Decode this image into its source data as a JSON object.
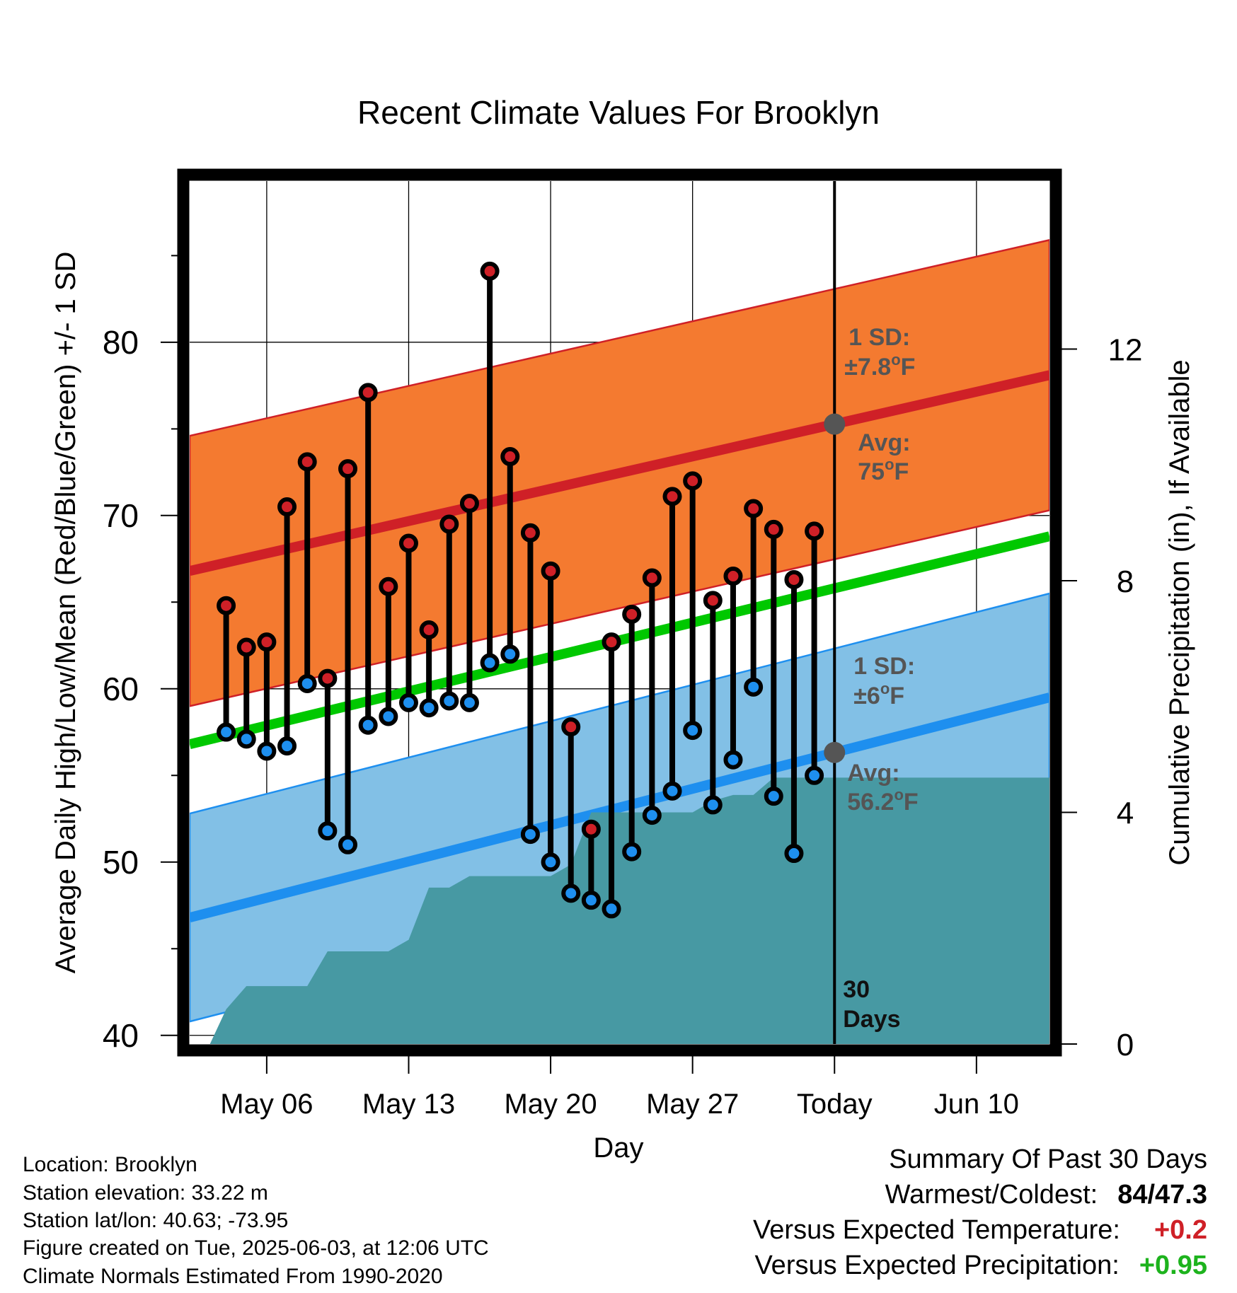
{
  "chart_data": {
    "type": "line",
    "title": "Recent Climate Values For Brooklyn",
    "xlabel": "Day",
    "ylabel": "Average Daily High/Low/Mean (Red/Blue/Green) +/- 1 SD",
    "y2label": "Cumulative Precipitation (in), If Available",
    "ylim": [
      39.5,
      89.3
    ],
    "y2lim": [
      0,
      14.9
    ],
    "xlim": [
      -1.8,
      40.6
    ],
    "y_ticks": [
      40,
      50,
      60,
      70,
      80
    ],
    "y_minor_ticks": [
      45,
      55,
      65,
      75,
      85
    ],
    "y2_ticks": [
      0,
      4,
      8,
      12
    ],
    "x_ticks": [
      {
        "day": 2,
        "label": "May 06"
      },
      {
        "day": 9,
        "label": "May 13"
      },
      {
        "day": 16,
        "label": "May 20"
      },
      {
        "day": 23,
        "label": "May 27"
      },
      {
        "day": 30,
        "label": "Today"
      },
      {
        "day": 37,
        "label": "Jun 10"
      }
    ],
    "grid": true,
    "today_day": 30,
    "colors": {
      "high_band": "#f47a30",
      "high_line": "#cf2027",
      "low_band": "#82c0e6",
      "low_line": "#1e8fef",
      "mean_line": "#00c800",
      "precip": "#4799a3",
      "annotation": "#555555",
      "positive_temp": "#cf2027",
      "positive_precip": "#1db31d"
    },
    "normal_high": {
      "start": 66.8,
      "end": 78.1,
      "sd": 7.8
    },
    "normal_low": {
      "start": 46.8,
      "end": 59.5,
      "sd": 6
    },
    "normal_mean": {
      "start": 56.8,
      "end": 68.8
    },
    "highs": [
      64.8,
      62.4,
      62.7,
      70.5,
      73.1,
      60.6,
      72.7,
      77.1,
      65.9,
      68.4,
      63.4,
      69.5,
      70.7,
      84.1,
      73.4,
      69.0,
      66.8,
      57.8,
      51.9,
      62.7,
      64.3,
      66.4,
      71.1,
      72.0,
      65.1,
      66.5,
      70.4,
      69.2,
      66.3,
      69.1
    ],
    "lows": [
      57.5,
      57.1,
      56.4,
      56.7,
      60.3,
      51.8,
      51.0,
      57.9,
      58.4,
      59.2,
      58.9,
      59.3,
      59.2,
      61.5,
      62.0,
      51.6,
      50.0,
      48.2,
      47.8,
      47.3,
      50.6,
      52.7,
      54.1,
      57.6,
      53.3,
      55.9,
      60.1,
      53.8,
      50.5,
      55.0
    ],
    "precip_cumulative": [
      [
        -1.8,
        0
      ],
      [
        -0.8,
        0
      ],
      [
        0,
        0.6
      ],
      [
        1,
        1.0
      ],
      [
        2,
        1.0
      ],
      [
        3,
        1.0
      ],
      [
        4,
        1.0
      ],
      [
        5,
        1.6
      ],
      [
        6,
        1.6
      ],
      [
        7,
        1.6
      ],
      [
        8,
        1.6
      ],
      [
        9,
        1.8
      ],
      [
        10,
        2.7
      ],
      [
        11,
        2.7
      ],
      [
        12,
        2.9
      ],
      [
        13,
        2.9
      ],
      [
        14,
        2.9
      ],
      [
        15,
        2.9
      ],
      [
        16,
        2.9
      ],
      [
        17,
        3.1
      ],
      [
        18,
        4.0
      ],
      [
        19,
        4.0
      ],
      [
        20,
        4.0
      ],
      [
        21,
        4.0
      ],
      [
        22,
        4.0
      ],
      [
        23,
        4.0
      ],
      [
        24,
        4.2
      ],
      [
        25,
        4.3
      ],
      [
        26,
        4.3
      ],
      [
        27,
        4.6
      ],
      [
        28,
        4.6
      ],
      [
        29,
        4.6
      ],
      [
        30,
        4.6
      ],
      [
        31,
        4.6
      ],
      [
        40.6,
        4.6
      ]
    ],
    "annotations": {
      "high_sd_label": "1 SD:",
      "high_sd_value": "±7.8",
      "high_avg_label": "Avg:",
      "high_avg_value": "75",
      "low_sd_label": "1 SD:",
      "low_sd_value": "±6",
      "low_avg_label": "Avg:",
      "low_avg_value": "56.2",
      "deg_sup": "o",
      "unit": "F",
      "days_number": "30",
      "days_word": "Days"
    }
  },
  "info": {
    "location": "Location: Brooklyn",
    "elevation": "Station elevation: 33.22 m",
    "latlon": "Station lat/lon: 40.63; -73.95",
    "created": "Figure created on Tue, 2025-06-03, at 12:06 UTC",
    "normals": "Climate Normals Estimated From 1990-2020"
  },
  "summary": {
    "title": "Summary Of Past 30 Days",
    "warmest_label": "Warmest/Coldest:",
    "warmest_value": "84/47.3",
    "temp_label": "Versus Expected Temperature:",
    "temp_value": "+0.2",
    "precip_label": "Versus Expected Precipitation:",
    "precip_value": "+0.95"
  }
}
